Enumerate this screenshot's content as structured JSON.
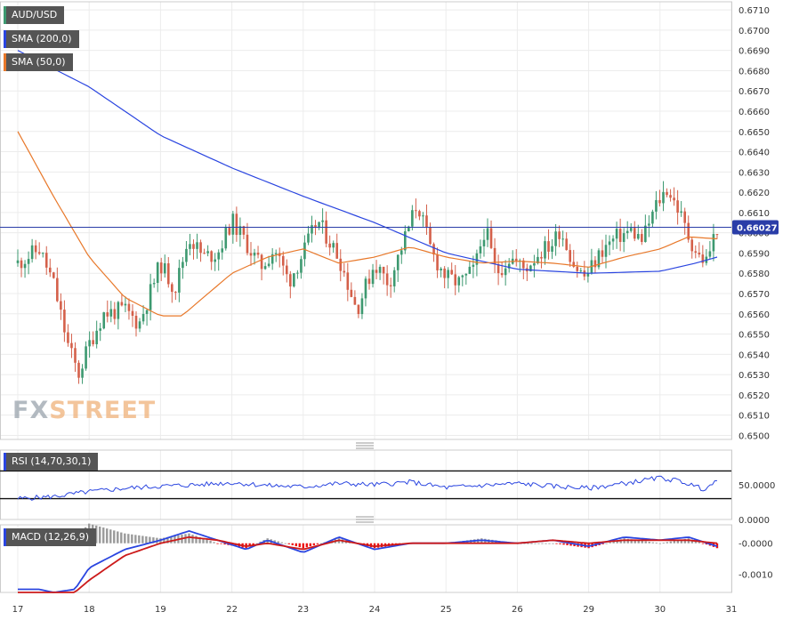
{
  "colors": {
    "up": "#3d9970",
    "down": "#d4604a",
    "sma200": "#2a45e0",
    "sma50": "#e8782a",
    "rsi": "#2a45e0",
    "macd_line": "#2a45e0",
    "signal_line": "#cc1a1a",
    "hist_pos": "#9a9a9a",
    "hist_neg": "#ee1111",
    "price_tag": "#2a3da8"
  },
  "legend": {
    "symbol": "AUD/USD",
    "sma200": "SMA (200,0)",
    "sma50": "SMA (50,0)",
    "rsi": "RSI (14,70,30,1)",
    "macd": "MACD (12,26,9)"
  },
  "watermark": {
    "part1": "FX",
    "part2": "STREET"
  },
  "chart_data": [
    {
      "type": "candlestick",
      "title": "AUD/USD",
      "x_ticks": [
        "17",
        "18",
        "19",
        "22",
        "23",
        "24",
        "25",
        "26",
        "29",
        "30",
        "31"
      ],
      "y_ticks": [
        "0.6710",
        "0.6700",
        "0.6690",
        "0.6680",
        "0.6670",
        "0.6660",
        "0.6650",
        "0.6640",
        "0.6630",
        "0.6620",
        "0.6610",
        "0.6600",
        "0.6590",
        "0.6580",
        "0.6570",
        "0.6560",
        "0.6550",
        "0.6540",
        "0.6530",
        "0.6520",
        "0.6510",
        "0.6500"
      ],
      "ylim": [
        0.6498,
        0.6714
      ],
      "last_price": "0.66027",
      "grid": true,
      "price_path": [
        [
          0.0,
          0.6585
        ],
        [
          0.3,
          0.6592
        ],
        [
          0.5,
          0.6575
        ],
        [
          0.7,
          0.6545
        ],
        [
          0.85,
          0.653
        ],
        [
          1.0,
          0.6545
        ],
        [
          1.2,
          0.656
        ],
        [
          1.5,
          0.6562
        ],
        [
          1.7,
          0.6555
        ],
        [
          2.0,
          0.6585
        ],
        [
          2.2,
          0.6572
        ],
        [
          2.4,
          0.6598
        ],
        [
          2.6,
          0.6588
        ],
        [
          2.8,
          0.659
        ],
        [
          3.0,
          0.6606
        ],
        [
          3.2,
          0.6595
        ],
        [
          3.4,
          0.6583
        ],
        [
          3.6,
          0.6592
        ],
        [
          3.8,
          0.6576
        ],
        [
          4.0,
          0.659
        ],
        [
          4.2,
          0.6606
        ],
        [
          4.5,
          0.6588
        ],
        [
          4.75,
          0.6562
        ],
        [
          5.0,
          0.6585
        ],
        [
          5.2,
          0.6575
        ],
        [
          5.4,
          0.6595
        ],
        [
          5.6,
          0.6615
        ],
        [
          5.8,
          0.659
        ],
        [
          6.0,
          0.6578
        ],
        [
          6.2,
          0.6575
        ],
        [
          6.4,
          0.6582
        ],
        [
          6.55,
          0.6603
        ],
        [
          6.7,
          0.658
        ],
        [
          6.9,
          0.6588
        ],
        [
          7.1,
          0.6582
        ],
        [
          7.3,
          0.659
        ],
        [
          7.5,
          0.6595
        ],
        [
          7.6,
          0.6602
        ],
        [
          7.8,
          0.6584
        ],
        [
          7.95,
          0.6578
        ],
        [
          8.2,
          0.6592
        ],
        [
          8.4,
          0.6598
        ],
        [
          8.6,
          0.6601
        ],
        [
          8.75,
          0.6596
        ],
        [
          8.95,
          0.6614
        ],
        [
          9.1,
          0.6622
        ],
        [
          9.25,
          0.6612
        ],
        [
          9.4,
          0.6598
        ],
        [
          9.55,
          0.6588
        ],
        [
          9.65,
          0.6586
        ],
        [
          9.8,
          0.6603
        ]
      ],
      "sma200_path": [
        [
          0.0,
          0.669
        ],
        [
          1.0,
          0.6672
        ],
        [
          2.0,
          0.6648
        ],
        [
          3.0,
          0.6632
        ],
        [
          4.0,
          0.6618
        ],
        [
          5.0,
          0.6605
        ],
        [
          6.0,
          0.659
        ],
        [
          7.0,
          0.6582
        ],
        [
          8.0,
          0.658
        ],
        [
          9.0,
          0.6581
        ],
        [
          9.5,
          0.6585
        ],
        [
          9.8,
          0.6588
        ]
      ],
      "sma50_path": [
        [
          0.0,
          0.665
        ],
        [
          0.5,
          0.6618
        ],
        [
          1.0,
          0.6588
        ],
        [
          1.5,
          0.6568
        ],
        [
          2.0,
          0.6559
        ],
        [
          2.3,
          0.6559
        ],
        [
          3.0,
          0.658
        ],
        [
          3.5,
          0.6588
        ],
        [
          4.0,
          0.6592
        ],
        [
          4.5,
          0.6585
        ],
        [
          5.0,
          0.6588
        ],
        [
          5.5,
          0.6593
        ],
        [
          6.0,
          0.6588
        ],
        [
          6.5,
          0.6585
        ],
        [
          7.0,
          0.6586
        ],
        [
          7.5,
          0.6585
        ],
        [
          8.0,
          0.6583
        ],
        [
          8.5,
          0.6588
        ],
        [
          9.0,
          0.6592
        ],
        [
          9.4,
          0.6598
        ],
        [
          9.8,
          0.6597
        ]
      ]
    },
    {
      "type": "line",
      "title": "RSI (14,70,30,1)",
      "ylim": [
        0,
        100
      ],
      "y_ticks": [
        "50.0000",
        "0.0000"
      ],
      "y_tick_values": [
        50,
        0
      ],
      "reference_lines": [
        70,
        30
      ],
      "path": [
        [
          0.0,
          30
        ],
        [
          0.5,
          33
        ],
        [
          1.0,
          40
        ],
        [
          1.5,
          45
        ],
        [
          2.0,
          48
        ],
        [
          2.5,
          50
        ],
        [
          3.0,
          53
        ],
        [
          3.5,
          49
        ],
        [
          4.0,
          47
        ],
        [
          4.5,
          52
        ],
        [
          5.0,
          50
        ],
        [
          5.5,
          54
        ],
        [
          6.0,
          46
        ],
        [
          6.5,
          49
        ],
        [
          7.0,
          52
        ],
        [
          7.5,
          48
        ],
        [
          8.0,
          45
        ],
        [
          8.5,
          52
        ],
        [
          9.0,
          60
        ],
        [
          9.3,
          55
        ],
        [
          9.6,
          44
        ],
        [
          9.8,
          54
        ]
      ]
    },
    {
      "type": "bar+line",
      "title": "MACD (12,26,9)",
      "ylim": [
        -0.0016,
        0.0006
      ],
      "y_ticks": [
        "-0.0000",
        "-0.0010"
      ],
      "y_tick_values": [
        0.0,
        -0.001
      ],
      "macd_path": [
        [
          0.0,
          -0.0015
        ],
        [
          0.3,
          -0.0015
        ],
        [
          0.5,
          -0.0016
        ],
        [
          0.8,
          -0.0015
        ],
        [
          1.0,
          -0.0008
        ],
        [
          1.5,
          -0.0002
        ],
        [
          2.0,
          0.0001
        ],
        [
          2.4,
          0.0004
        ],
        [
          2.8,
          0.0001
        ],
        [
          3.2,
          -0.0002
        ],
        [
          3.5,
          0.0001
        ],
        [
          4.0,
          -0.0003
        ],
        [
          4.5,
          0.0002
        ],
        [
          5.0,
          -0.0002
        ],
        [
          5.5,
          0.0
        ],
        [
          6.0,
          0.0
        ],
        [
          6.5,
          0.0001
        ],
        [
          7.0,
          0.0
        ],
        [
          7.5,
          0.0001
        ],
        [
          8.0,
          -0.0001
        ],
        [
          8.5,
          0.0002
        ],
        [
          9.0,
          0.0001
        ],
        [
          9.4,
          0.0002
        ],
        [
          9.8,
          -0.0001
        ]
      ],
      "signal_path": [
        [
          0.0,
          -0.0016
        ],
        [
          0.5,
          -0.0016
        ],
        [
          0.8,
          -0.0016
        ],
        [
          1.0,
          -0.0012
        ],
        [
          1.5,
          -0.0004
        ],
        [
          2.0,
          0.0
        ],
        [
          2.4,
          0.0002
        ],
        [
          2.8,
          0.0001
        ],
        [
          3.2,
          -0.0001
        ],
        [
          3.5,
          0.0
        ],
        [
          4.0,
          -0.0002
        ],
        [
          4.5,
          0.0001
        ],
        [
          5.0,
          -0.0001
        ],
        [
          5.5,
          0.0
        ],
        [
          6.0,
          0.0
        ],
        [
          6.5,
          0.0
        ],
        [
          7.0,
          0.0
        ],
        [
          7.5,
          0.0001
        ],
        [
          8.0,
          0.0
        ],
        [
          8.5,
          0.0001
        ],
        [
          9.0,
          0.0001
        ],
        [
          9.4,
          0.0001
        ],
        [
          9.8,
          0.0
        ]
      ]
    }
  ]
}
